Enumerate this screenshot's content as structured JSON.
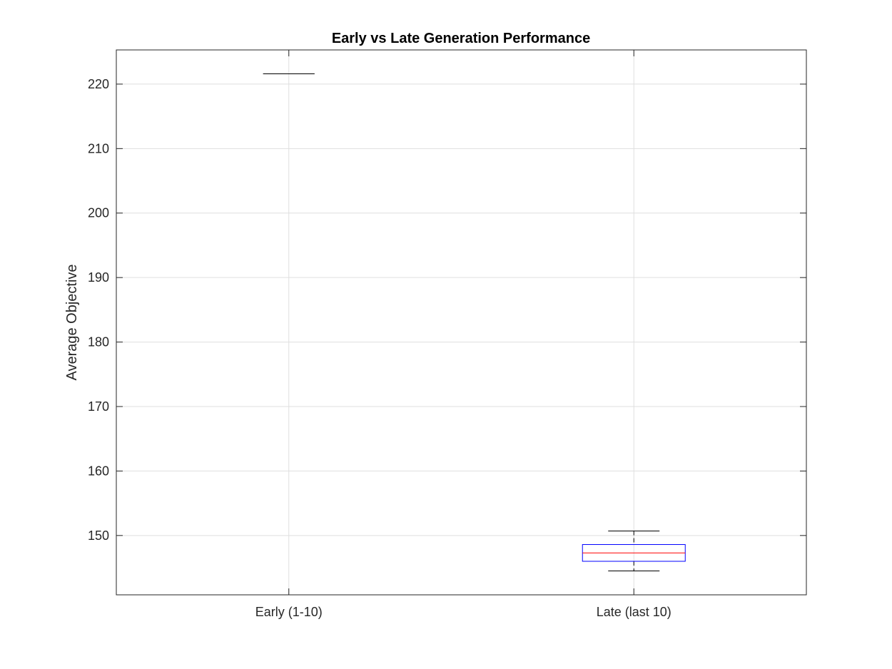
{
  "chart_data": {
    "type": "box",
    "title": "Early vs Late Generation Performance",
    "xlabel": "",
    "ylabel": "Average Objective",
    "categories": [
      "Early (1-10)",
      "Late (last 10)"
    ],
    "boxes": [
      {
        "category": "Early (1-10)",
        "min": 221.6,
        "q1": 221.6,
        "median": 221.6,
        "q3": 221.6,
        "max": 221.6
      },
      {
        "category": "Late (last 10)",
        "min": 144.5,
        "q1": 146.0,
        "median": 147.3,
        "q3": 148.6,
        "max": 150.7
      }
    ],
    "ylim": [
      140.8,
      225.3
    ],
    "yticks": [
      150,
      160,
      170,
      180,
      190,
      200,
      210,
      220
    ],
    "grid": true,
    "colors": {
      "box": "#0000ff",
      "median": "#ff0000",
      "whisker": "#000000",
      "grid": "#dfdfdf",
      "axis": "#262626"
    }
  }
}
